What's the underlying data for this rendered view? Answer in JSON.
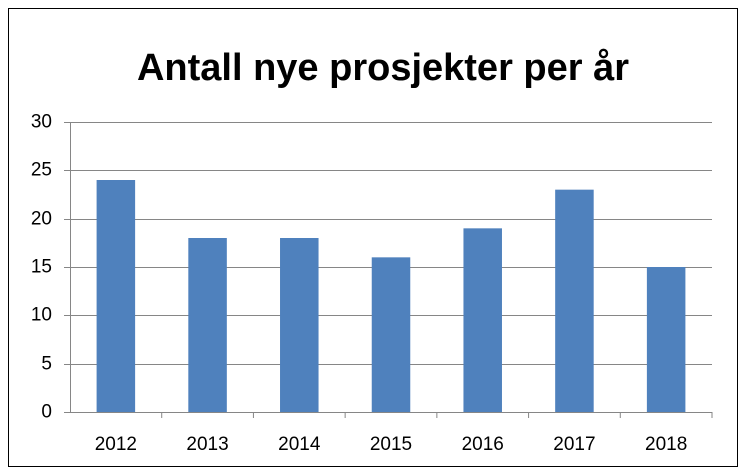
{
  "chart_data": {
    "type": "bar",
    "title": "Antall nye prosjekter per år",
    "categories": [
      "2012",
      "2013",
      "2014",
      "2015",
      "2016",
      "2017",
      "2018"
    ],
    "values": [
      24,
      18,
      18,
      16,
      19,
      23,
      15
    ],
    "color": "#4f81bd",
    "ylim": [
      0,
      30
    ],
    "yticks": [
      0,
      5,
      10,
      15,
      20,
      25,
      30
    ],
    "grid": true
  }
}
